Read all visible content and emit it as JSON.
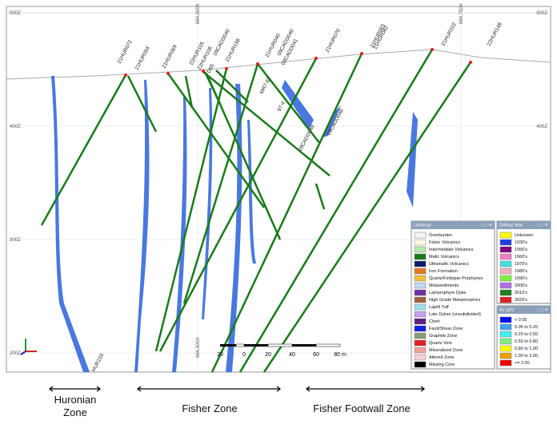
{
  "section": {
    "elevations": [
      "500Z",
      "400Z",
      "300Z",
      "200Z"
    ],
    "eastings": [
      "664,500X",
      "664,750X",
      "664,500X"
    ],
    "drillholes": [
      "21HUR072",
      "21HUR054",
      "21HUR069",
      "22HUR105",
      "22HUR106",
      "09CADD040",
      "21HUR156",
      "D65",
      "21HUR040",
      "09CADD040",
      "09CADD041",
      "21HUR070",
      "21HUR083",
      "21HUR082",
      "21HUR102",
      "22HUR148",
      "MR7-67",
      "97-4",
      "09CADD048",
      "09CADD049",
      "HUR155"
    ],
    "scale_labels": [
      "20",
      "0",
      "20",
      "40",
      "60",
      "80 m"
    ]
  },
  "lithology_legend": {
    "title": "Lithology",
    "items": [
      {
        "label": "Overburden",
        "color": "#f4f4f4"
      },
      {
        "label": "Felsic Volcanics",
        "color": "#fff8e0"
      },
      {
        "label": "Intermediate Volcanics",
        "color": "#b8e8b0"
      },
      {
        "label": "Mafic Volcanics",
        "color": "#1a7a1a"
      },
      {
        "label": "Ultramafic Volcanics",
        "color": "#0a1a6a"
      },
      {
        "label": "Iron Formation",
        "color": "#e87820"
      },
      {
        "label": "Quartz/Feldspar Porphyries",
        "color": "#f0c040"
      },
      {
        "label": "Metasediments",
        "color": "#c0d8f0"
      },
      {
        "label": "Lamprophyre Dyke",
        "color": "#7030a0"
      },
      {
        "label": "High Grade Metamorphics",
        "color": "#a06040"
      },
      {
        "label": "Lapilli Tuff",
        "color": "#a0e0f0"
      },
      {
        "label": "Late Dykes (unsubdivided)",
        "color": "#c8a0e8"
      },
      {
        "label": "Chert",
        "color": "#602080"
      },
      {
        "label": "Fault/Shear Zone",
        "color": "#1020e0"
      },
      {
        "label": "Graphite Zone",
        "color": "#8a9a7a"
      },
      {
        "label": "Quartz Vein",
        "color": "#e02020"
      },
      {
        "label": "Mineralized Zone",
        "color": "#f0a0a0"
      },
      {
        "label": "Altered Zone",
        "color": "#f8d0d8"
      },
      {
        "label": "Missing Core",
        "color": "#000000"
      }
    ]
  },
  "year_legend": {
    "title": "Drilling Year",
    "items": [
      {
        "label": "Unknown",
        "color": "#ffff00"
      },
      {
        "label": "1930's",
        "color": "#2040e0"
      },
      {
        "label": "1950's",
        "color": "#800080"
      },
      {
        "label": "1960's",
        "color": "#f080c0"
      },
      {
        "label": "1970's",
        "color": "#40e0e0"
      },
      {
        "label": "1980's",
        "color": "#f0b0c0"
      },
      {
        "label": "1990's",
        "color": "#80f040"
      },
      {
        "label": "2000's",
        "color": "#b070e0"
      },
      {
        "label": "2010's",
        "color": "#208020"
      },
      {
        "label": "2020's",
        "color": "#e02020"
      }
    ]
  },
  "au_legend": {
    "title": "Au (g/t)",
    "items": [
      {
        "label": "< 0.05",
        "color": "#0010f0"
      },
      {
        "label": "0.05 to 0.20",
        "color": "#40a0f0"
      },
      {
        "label": "0.20 to 0.50",
        "color": "#40f0f0"
      },
      {
        "label": "0.50 to 0.80",
        "color": "#80f080"
      },
      {
        "label": "0.80 to 1.00",
        "color": "#ffff00"
      },
      {
        "label": "1.00 to 2.00",
        "color": "#f0a000"
      },
      {
        "label": ">= 2.00",
        "color": "#f00000"
      }
    ]
  },
  "zones": [
    "Huronian\nZone",
    "Fisher Zone",
    "Fisher Footwall Zone"
  ]
}
